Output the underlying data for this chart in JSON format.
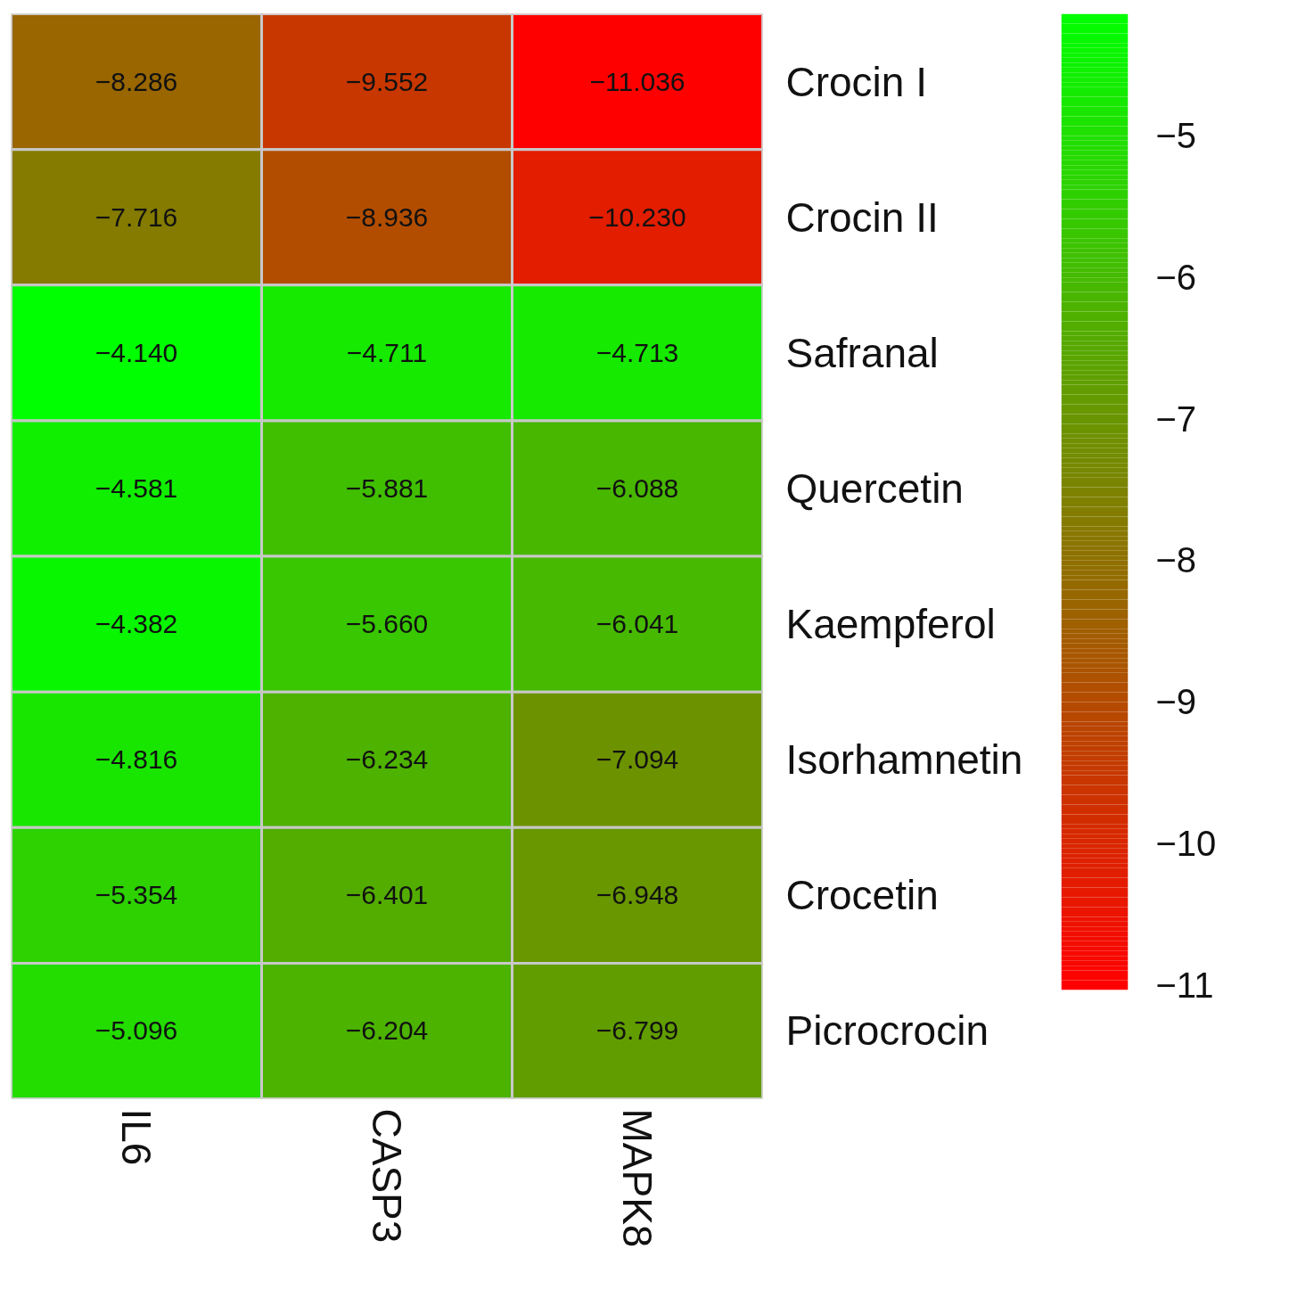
{
  "chart_data": {
    "type": "heatmap",
    "categories": [
      "IL6",
      "CASP3",
      "MAPK8"
    ],
    "y_categories": [
      "Crocin I",
      "Crocin II",
      "Safranal",
      "Quercetin",
      "Kaempferol",
      "Isorhamnetin",
      "Crocetin",
      "Picrocrocin"
    ],
    "cells": [
      [
        -8.286,
        -9.552,
        -11.036
      ],
      [
        -7.716,
        -8.936,
        -10.23
      ],
      [
        -4.14,
        -4.711,
        -4.713
      ],
      [
        -4.581,
        -5.881,
        -6.088
      ],
      [
        -4.382,
        -5.66,
        -6.041
      ],
      [
        -4.816,
        -6.234,
        -7.094
      ],
      [
        -5.354,
        -6.401,
        -6.948
      ],
      [
        -5.096,
        -6.204,
        -6.799
      ]
    ],
    "cell_labels": [
      [
        "−8.286",
        "−9.552",
        "−11.036"
      ],
      [
        "−7.716",
        "−8.936",
        "−10.230"
      ],
      [
        "−4.140",
        "−4.711",
        "−4.713"
      ],
      [
        "−4.581",
        "−5.881",
        "−6.088"
      ],
      [
        "−4.382",
        "−5.660",
        "−6.041"
      ],
      [
        "−4.816",
        "−6.234",
        "−7.094"
      ],
      [
        "−5.354",
        "−6.401",
        "−6.948"
      ],
      [
        "−5.096",
        "−6.204",
        "−6.799"
      ]
    ],
    "clim": [
      -11.036,
      -4.14
    ],
    "cticks": [
      {
        "value": -5,
        "label": "−5"
      },
      {
        "value": -6,
        "label": "−6"
      },
      {
        "value": -7,
        "label": "−7"
      },
      {
        "value": -8,
        "label": "−8"
      },
      {
        "value": -9,
        "label": "−9"
      },
      {
        "value": -10,
        "label": "−10"
      },
      {
        "value": -11,
        "label": "−11"
      }
    ]
  }
}
